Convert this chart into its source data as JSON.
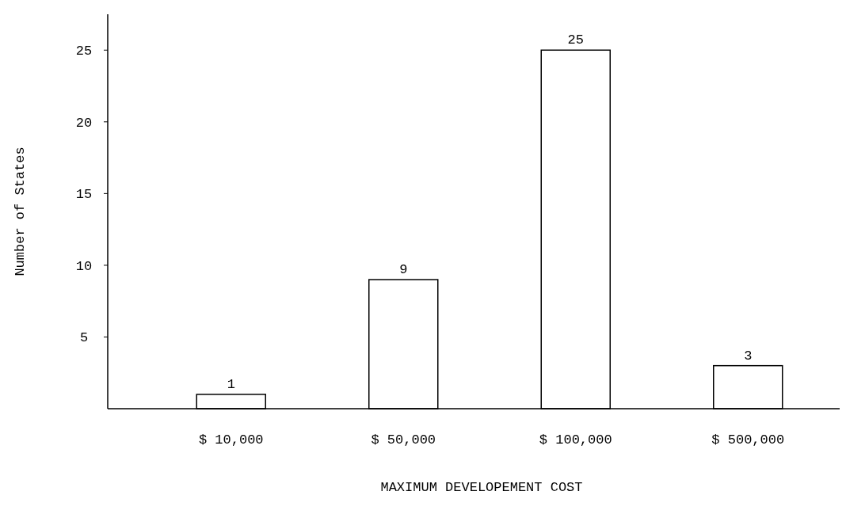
{
  "chart_data": {
    "type": "bar",
    "xlabel": "MAXIMUM DEVELOPEMENT COST",
    "ylabel": "Number of States",
    "categories": [
      "$ 10,000",
      "$ 50,000",
      "$ 100,000",
      "$ 500,000"
    ],
    "values": [
      1,
      9,
      25,
      3
    ],
    "color": "#ffffff",
    "data_labels": true,
    "ylim": [
      0,
      27.5
    ],
    "yticks": [
      5,
      10,
      15,
      20,
      25
    ],
    "grid": false
  }
}
